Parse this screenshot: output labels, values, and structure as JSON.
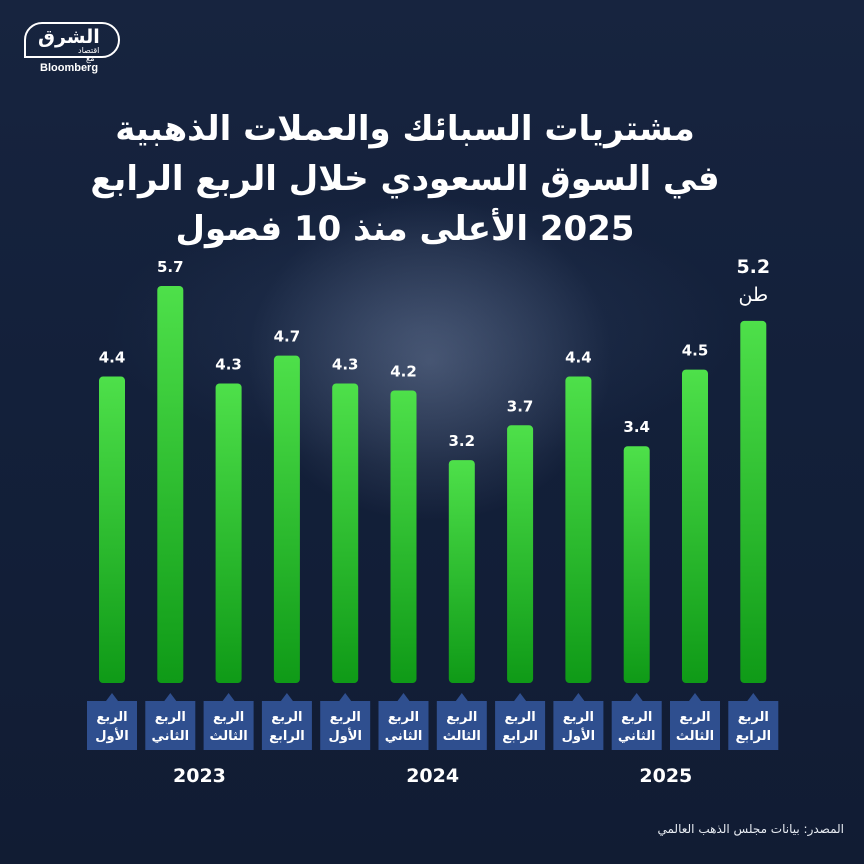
{
  "brand": {
    "name_ar": "الشرق",
    "sub_ar": "اقتصاد",
    "with_ar": "مع",
    "partner": "Bloomberg"
  },
  "title": {
    "line1": "مشتريات السبائك والعملات الذهبية",
    "line2": "في السوق السعودي خلال الربع الرابع",
    "line3": "2025 الأعلى منذ 10 فصول"
  },
  "source": "المصدر: بيانات مجلس الذهب العالمي",
  "colors": {
    "background": "#13203a",
    "bar_light": "#4ee04a",
    "bar_dark": "#0f9a17",
    "quarter_tag": "#2f4f8f",
    "text": "#ffffff"
  },
  "chart_data": {
    "type": "bar",
    "unit": "طن",
    "title": "مشتريات السبائك والعملات الذهبية في السوق السعودي",
    "ylim": [
      0,
      5.7
    ],
    "grid": false,
    "categories": [
      {
        "line1": "الربع",
        "line2": "الأول",
        "year": "2023"
      },
      {
        "line1": "الربع",
        "line2": "الثاني",
        "year": "2023"
      },
      {
        "line1": "الربع",
        "line2": "الثالث",
        "year": "2023"
      },
      {
        "line1": "الربع",
        "line2": "الرابع",
        "year": "2023"
      },
      {
        "line1": "الربع",
        "line2": "الأول",
        "year": "2024"
      },
      {
        "line1": "الربع",
        "line2": "الثاني",
        "year": "2024"
      },
      {
        "line1": "الربع",
        "line2": "الثالث",
        "year": "2024"
      },
      {
        "line1": "الربع",
        "line2": "الرابع",
        "year": "2024"
      },
      {
        "line1": "الربع",
        "line2": "الأول",
        "year": "2025"
      },
      {
        "line1": "الربع",
        "line2": "الثاني",
        "year": "2025"
      },
      {
        "line1": "الربع",
        "line2": "الثالث",
        "year": "2025"
      },
      {
        "line1": "الربع",
        "line2": "الرابع",
        "year": "2025"
      }
    ],
    "values": [
      4.4,
      5.7,
      4.3,
      4.7,
      4.3,
      4.2,
      3.2,
      3.7,
      4.4,
      3.4,
      4.5,
      5.2
    ],
    "value_labels": [
      "4.4",
      "5.7",
      "4.3",
      "4.7",
      "4.3",
      "4.2",
      "3.2",
      "3.7",
      "4.4",
      "3.4",
      "4.5",
      "5.2"
    ],
    "years": [
      "2023",
      "2024",
      "2025"
    ]
  }
}
